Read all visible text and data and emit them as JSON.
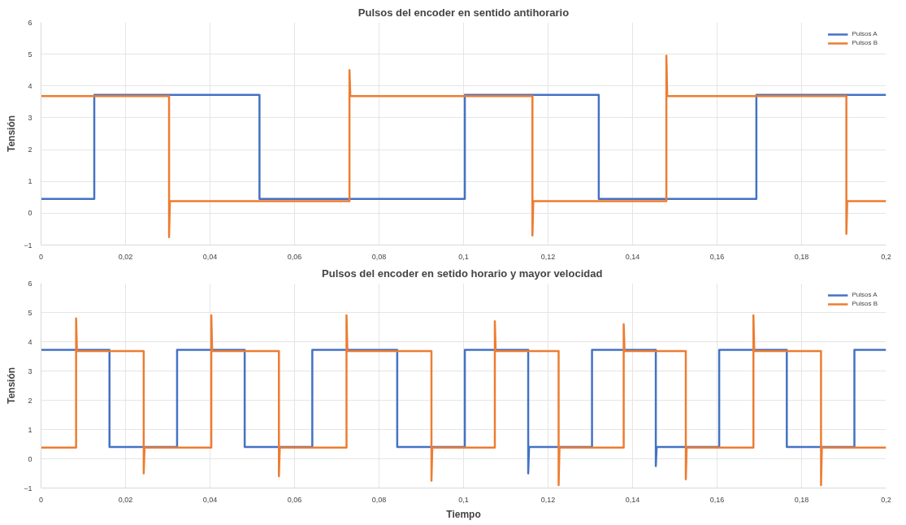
{
  "chart_data": [
    {
      "type": "line",
      "title": "Pulsos del encoder en sentido antihorario",
      "ylabel": "Tensión",
      "xlim": [
        0,
        0.2
      ],
      "ylim": [
        -1,
        6
      ],
      "xticks": [
        0,
        {
          "value": 0.02,
          "label": "0,02"
        },
        {
          "value": 0.04,
          "label": "0,04"
        },
        {
          "value": 0.06,
          "label": "0,06"
        },
        {
          "value": 0.08,
          "label": "0,08"
        },
        {
          "value": 0.1,
          "label": "0,1"
        },
        {
          "value": 0.12,
          "label": "0,12"
        },
        {
          "value": 0.14,
          "label": "0,14"
        },
        {
          "value": 0.16,
          "label": "0,16"
        },
        {
          "value": 0.18,
          "label": "0,18"
        },
        {
          "value": 0.2,
          "label": "0,2"
        }
      ],
      "yticks": [
        -1,
        0,
        1,
        2,
        3,
        4,
        5,
        6
      ],
      "grid": true,
      "legend": "top right",
      "marker": "none",
      "line_style": "solid",
      "series": [
        {
          "name": "Pulsos A",
          "color": "#4472c4",
          "x": [
            0,
            0.0126,
            0.0126,
            0.0517,
            0.0517,
            0.1003,
            0.1003,
            0.132,
            0.132,
            0.1693,
            0.1693,
            0.2
          ],
          "values": [
            0.45,
            0.45,
            3.72,
            3.72,
            0.45,
            0.45,
            3.72,
            3.72,
            0.45,
            0.45,
            3.72,
            3.72
          ]
        },
        {
          "name": "Pulsos B",
          "color": "#ed7d31",
          "x": [
            0,
            0.0303,
            0.0303,
            0.0305,
            0.073,
            0.073,
            0.0732,
            0.1163,
            0.1163,
            0.1165,
            0.148,
            0.148,
            0.1482,
            0.1906,
            0.1906,
            0.1908,
            0.2
          ],
          "values": [
            3.68,
            3.68,
            -0.75,
            0.38,
            0.38,
            4.5,
            3.68,
            3.68,
            -0.7,
            0.38,
            0.38,
            4.95,
            3.68,
            3.68,
            -0.65,
            0.38,
            0.38
          ]
        }
      ]
    },
    {
      "type": "line",
      "title": "Pulsos del encoder en setido horario  y mayor velocidad",
      "xlabel": "Tiempo",
      "ylabel": "Tensión",
      "xlim": [
        0,
        0.2
      ],
      "ylim": [
        -1,
        6
      ],
      "xticks": [
        0,
        {
          "value": 0.02,
          "label": "0,02"
        },
        {
          "value": 0.04,
          "label": "0,04"
        },
        {
          "value": 0.06,
          "label": "0,06"
        },
        {
          "value": 0.08,
          "label": "0,08"
        },
        {
          "value": 0.1,
          "label": "0,1"
        },
        {
          "value": 0.12,
          "label": "0,12"
        },
        {
          "value": 0.14,
          "label": "0,14"
        },
        {
          "value": 0.16,
          "label": "0,16"
        },
        {
          "value": 0.18,
          "label": "0,18"
        },
        {
          "value": 0.2,
          "label": "0,2"
        }
      ],
      "yticks": [
        -1,
        0,
        1,
        2,
        3,
        4,
        5,
        6
      ],
      "grid": true,
      "legend": "top right",
      "marker": "none",
      "line_style": "solid",
      "series": [
        {
          "name": "Pulsos A",
          "color": "#4472c4",
          "x": [
            0,
            0.0162,
            0.0162,
            0.0322,
            0.0322,
            0.0482,
            0.0482,
            0.0642,
            0.0642,
            0.0843,
            0.0843,
            0.1003,
            0.1003,
            0.1153,
            0.1153,
            0.1155,
            0.1304,
            0.1304,
            0.1455,
            0.1455,
            0.1457,
            0.1605,
            0.1605,
            0.1765,
            0.1765,
            0.1925,
            0.1925,
            0.2
          ],
          "values": [
            3.72,
            3.72,
            0.4,
            0.4,
            3.72,
            3.72,
            0.4,
            0.4,
            3.72,
            3.72,
            0.4,
            0.4,
            3.72,
            3.72,
            -0.5,
            0.4,
            0.4,
            3.72,
            3.72,
            -0.25,
            0.4,
            0.4,
            3.72,
            3.72,
            0.4,
            0.4,
            3.72,
            3.72
          ]
        },
        {
          "name": "Pulsos B",
          "color": "#ed7d31",
          "x": [
            0,
            0.0083,
            0.0083,
            0.0085,
            0.0243,
            0.0243,
            0.0245,
            0.0403,
            0.0403,
            0.0405,
            0.0563,
            0.0563,
            0.0565,
            0.0723,
            0.0723,
            0.0725,
            0.0924,
            0.0924,
            0.0926,
            0.1074,
            0.1074,
            0.1076,
            0.1225,
            0.1225,
            0.1227,
            0.1379,
            0.1379,
            0.1381,
            0.1526,
            0.1526,
            0.1528,
            0.1686,
            0.1686,
            0.1688,
            0.1846,
            0.1846,
            0.1848,
            0.2
          ],
          "values": [
            0.38,
            0.38,
            4.8,
            3.68,
            3.68,
            -0.5,
            0.38,
            0.38,
            4.9,
            3.68,
            3.68,
            -0.6,
            0.38,
            0.38,
            4.9,
            3.68,
            3.68,
            -0.75,
            0.38,
            0.38,
            4.7,
            3.68,
            3.68,
            -0.9,
            0.38,
            0.38,
            4.6,
            3.68,
            3.68,
            -0.7,
            0.38,
            0.38,
            4.9,
            3.68,
            3.68,
            -0.9,
            0.38,
            0.38
          ]
        }
      ]
    }
  ]
}
